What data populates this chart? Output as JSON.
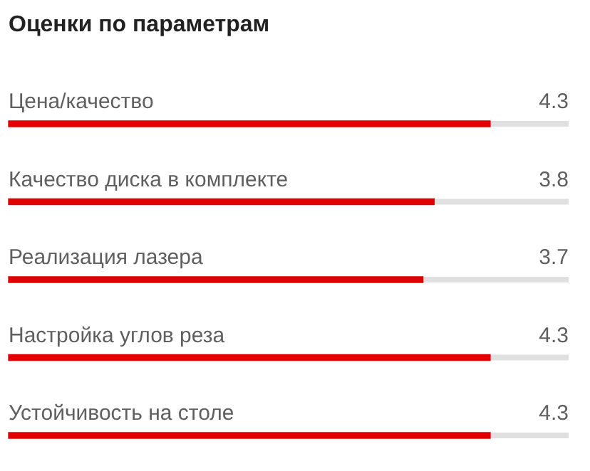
{
  "chart_data": {
    "type": "bar",
    "orientation": "horizontal",
    "title": "Оценки по параметрам",
    "categories": [
      "Цена/качество",
      "Качество диска в комплекте",
      "Реализация лазера",
      "Настройка углов реза",
      "Устойчивость на столе"
    ],
    "values": [
      4.3,
      3.8,
      3.7,
      4.3,
      4.3
    ],
    "color": "#e00000",
    "xlim": [
      0,
      5
    ],
    "tick_labels": false,
    "legend": false,
    "data_labels": true
  }
}
